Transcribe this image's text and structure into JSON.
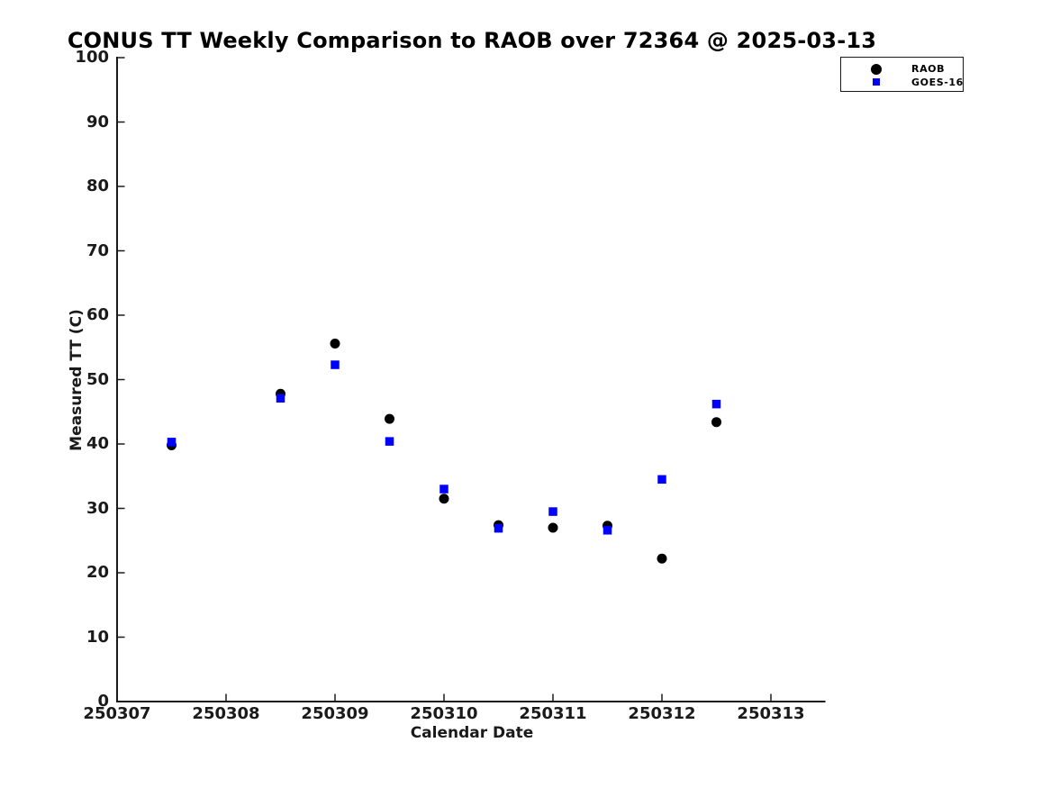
{
  "chart_data": {
    "type": "scatter",
    "title": "CONUS TT Weekly Comparison to RAOB over 72364 @ 2025-03-13",
    "xlabel": "Calendar Date",
    "ylabel": "Measured TT (C)",
    "xlim": [
      250307,
      250313.5
    ],
    "ylim": [
      0,
      100
    ],
    "xticks": [
      250307,
      250308,
      250309,
      250310,
      250311,
      250312,
      250313
    ],
    "xtick_labels": [
      "250307",
      "250308",
      "250309",
      "250310",
      "250311",
      "250312",
      "250313"
    ],
    "yticks": [
      0,
      10,
      20,
      30,
      40,
      50,
      60,
      70,
      80,
      90,
      100
    ],
    "ytick_labels": [
      "0",
      "10",
      "20",
      "30",
      "40",
      "50",
      "60",
      "70",
      "80",
      "90",
      "100"
    ],
    "grid": false,
    "legend_position": "top-right",
    "x": [
      250307.5,
      250308.5,
      250309,
      250309.5,
      250310,
      250310.5,
      250311,
      250311.5,
      250312,
      250312.5
    ],
    "series": [
      {
        "name": "RAOB",
        "marker": "circle",
        "color": "#000000",
        "values": [
          39.8,
          47.8,
          55.6,
          43.9,
          31.5,
          27.4,
          27.0,
          27.3,
          22.2,
          43.4
        ]
      },
      {
        "name": "GOES-16",
        "marker": "square",
        "color": "#0000FF",
        "values": [
          40.3,
          47.1,
          52.3,
          40.4,
          33.0,
          26.9,
          29.5,
          26.6,
          34.5,
          46.2
        ]
      }
    ]
  }
}
